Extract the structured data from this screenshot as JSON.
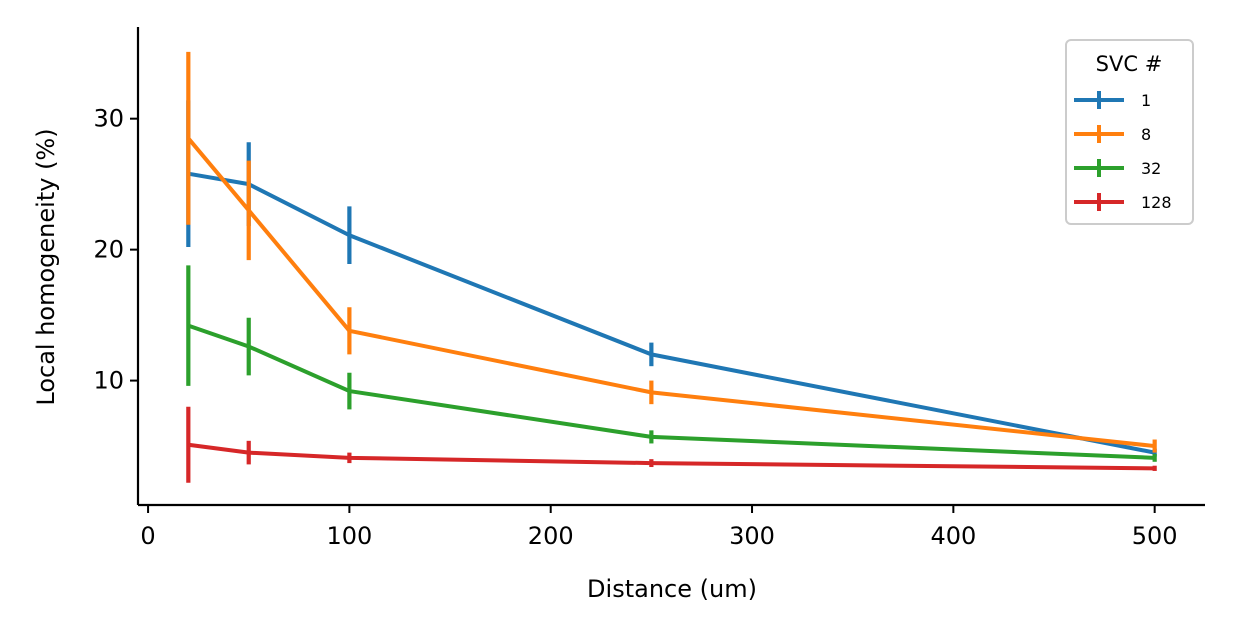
{
  "chart_data": {
    "type": "line",
    "title": "",
    "xlabel": "Distance (um)",
    "ylabel": "Local homogeneity (%)",
    "xlim": [
      -5,
      525
    ],
    "ylim": [
      0.5,
      37
    ],
    "xticks": [
      0,
      100,
      200,
      300,
      400,
      500
    ],
    "yticks": [
      10,
      20,
      30
    ],
    "xtick_labels": [
      "0",
      "100",
      "200",
      "300",
      "400",
      "500"
    ],
    "ytick_labels": [
      "10",
      "20",
      "30"
    ],
    "x": [
      20,
      50,
      100,
      250,
      500
    ],
    "grid": false,
    "legend": {
      "title": "SVC #",
      "placement": "top-right"
    },
    "series": [
      {
        "name": "1",
        "color": "#1f77b4",
        "values": [
          25.8,
          25.0,
          21.1,
          12.0,
          4.5
        ],
        "errors": [
          5.6,
          3.2,
          2.2,
          0.9,
          0.3
        ]
      },
      {
        "name": "8",
        "color": "#ff7f0e",
        "values": [
          28.5,
          23.0,
          13.8,
          9.1,
          5.0
        ],
        "errors": [
          6.6,
          3.8,
          1.8,
          0.9,
          0.5
        ]
      },
      {
        "name": "32",
        "color": "#2ca02c",
        "values": [
          14.2,
          12.6,
          9.2,
          5.7,
          4.1
        ],
        "errors": [
          4.6,
          2.2,
          1.4,
          0.5,
          0.3
        ]
      },
      {
        "name": "128",
        "color": "#d62728",
        "values": [
          5.1,
          4.5,
          4.1,
          3.7,
          3.3
        ],
        "errors": [
          2.9,
          0.9,
          0.4,
          0.3,
          0.2
        ]
      }
    ]
  }
}
